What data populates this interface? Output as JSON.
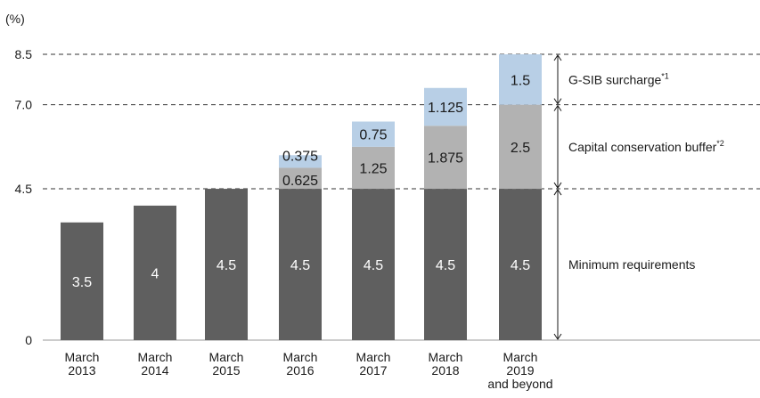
{
  "chart_data": {
    "type": "bar",
    "stacked": true,
    "unit_label": "(%)",
    "ylim": [
      0,
      8.5
    ],
    "y_ticks": [
      {
        "value": 0,
        "label": "0"
      },
      {
        "value": 4.5,
        "label": "4.5"
      },
      {
        "value": 7.0,
        "label": "7.0"
      },
      {
        "value": 8.5,
        "label": "8.5"
      }
    ],
    "reference_lines": [
      4.5,
      7.0,
      8.5
    ],
    "categories": [
      [
        "March",
        "2013"
      ],
      [
        "March",
        "2014"
      ],
      [
        "March",
        "2015"
      ],
      [
        "March",
        "2016"
      ],
      [
        "March",
        "2017"
      ],
      [
        "March",
        "2018"
      ],
      [
        "March",
        "2019",
        "and beyond"
      ]
    ],
    "series": [
      {
        "name": "Minimum requirements",
        "color": "#5f5f5f",
        "label_color": "#ffffff",
        "values": [
          3.5,
          4,
          4.5,
          4.5,
          4.5,
          4.5,
          4.5
        ],
        "labels": [
          "3.5",
          "4",
          "4.5",
          "4.5",
          "4.5",
          "4.5",
          "4.5"
        ]
      },
      {
        "name": "Capital conservation buffer",
        "color": "#b2b2b2",
        "label_color": "#1a1a1a",
        "values": [
          0,
          0,
          0,
          0.625,
          1.25,
          1.875,
          2.5
        ],
        "labels": [
          "",
          "",
          "",
          "0.625",
          "1.25",
          "1.875",
          "2.5"
        ]
      },
      {
        "name": "G-SIB surcharge",
        "color": "#b8cfe6",
        "label_color": "#1a1a1a",
        "values": [
          0,
          0,
          0,
          0.375,
          0.75,
          1.125,
          1.5
        ],
        "labels": [
          "",
          "",
          "",
          "0.375",
          "0.75",
          "1.125",
          "1.5"
        ]
      }
    ],
    "brackets": [
      {
        "from": 7.0,
        "to": 8.5,
        "label": "G-SIB surcharge",
        "sup": "*1"
      },
      {
        "from": 4.5,
        "to": 7.0,
        "label": "Capital conservation buffer",
        "sup": "*2"
      },
      {
        "from": 0,
        "to": 4.5,
        "label": "Minimum requirements",
        "sup": ""
      }
    ]
  }
}
